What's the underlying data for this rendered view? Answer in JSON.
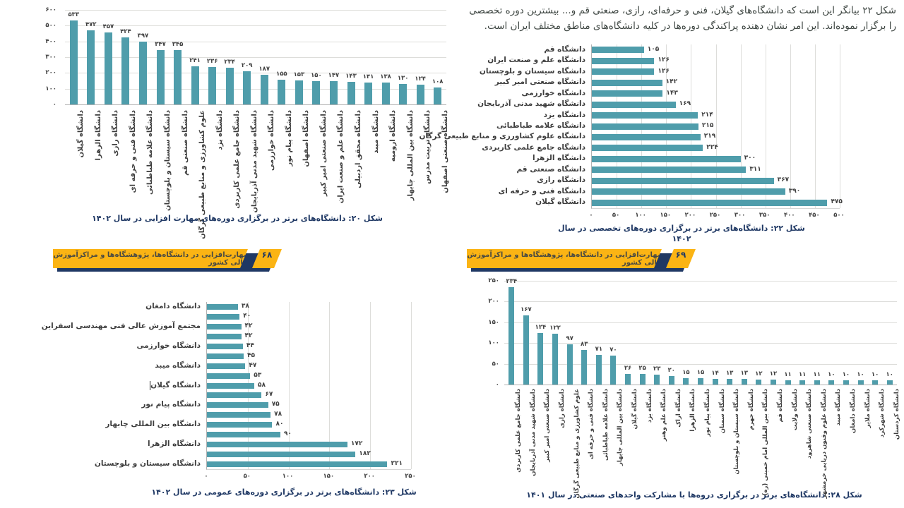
{
  "intro_paragraph": "شکل ۲۲ بیانگر این است که دانشگاه‌های گیلان، فنی و حرفه‌ای، رازی، صنعتی قم و... بیشترین دوره تخصصی را برگزار نموده‌اند. این امر نشان دهنده پراکندگی دوره‌ها در کلیه دانشگاه‌های مناطق مختلف ایران است.",
  "banners": {
    "left": {
      "title": "مهارت‌افزایی در دانشگاه‌ها، پژوهشگاه‌ها و مراکزآموزش عالی کشور",
      "page_number": "۶۸"
    },
    "right": {
      "title": "مهارت‌افزایی در دانشگاه‌ها، پژوهشگاه‌ها و مراکزآموزش عالی کشور",
      "page_number": "۶۹"
    }
  },
  "colors": {
    "bar_teal": "#4f9dab",
    "banner_yellow": "#fbb414",
    "shadow_navy": "#1f3864",
    "caption_navy": "#1f3864",
    "text_dark": "#3f3f3f"
  },
  "chart_data": [
    {
      "figure": "شکل ۲۰",
      "type": "bar",
      "orientation": "vertical",
      "grid": true,
      "legend": false,
      "xlabel": "",
      "ylabel": "",
      "caption": "شکل ۲۰: دانشگاه‌های برتر در برگزاری دوره‌های مهارت افزایی در سال ۱۴۰۲",
      "categories": [
        "دانشگاه گیلان",
        "دانشگاه الزهرا",
        "دانشگاه رازی",
        "دانشگاه فنی و حرفه ای",
        "دانشگاه علامه طباطبائی",
        "دانشگاه سیستان و بلوچستان",
        "دانشگاه صنعتی قم",
        "علوم کشاورزی و منابع طبیعی گرگان",
        "دانشگاه یزد",
        "دانشگاه جامع علمی کاربردی",
        "دانشگاه شهید مدنی آذربایجان",
        "دانشگاه خوارزمی",
        "دانشگاه پیام نور",
        "دانشگاه اصفهان",
        "دانشگاه صنعتی امیر کبیر",
        "دانشگاه علم و صنعت ایران",
        "دانشگاه محقق اردبیلی",
        "دانشگاه میبد",
        "دانشگاه ارومیه",
        "دانشگاه بین المللی چابهار",
        "دانشگاه تربیت مدرس",
        "دانشگاه صنعتی اصفهان"
      ],
      "values": [
        533,
        472,
        457,
        424,
        397,
        347,
        345,
        241,
        236,
        234,
        209,
        187,
        155,
        153,
        150,
        147,
        143,
        141,
        138,
        130,
        124,
        108
      ],
      "value_labels": [
        "۵۳۳",
        "۴۷۲",
        "۴۵۷",
        "۴۲۴",
        "۳۹۷",
        "۳۴۷",
        "۳۴۵",
        "۲۴۱",
        "۲۳۶",
        "۲۳۴",
        "۲۰۹",
        "۱۸۷",
        "۱۵۵",
        "۱۵۳",
        "۱۵۰",
        "۱۴۷",
        "۱۴۳",
        "۱۴۱",
        "۱۳۸",
        "۱۳۰",
        "۱۲۴",
        "۱۰۸"
      ],
      "ylim": [
        0,
        600
      ],
      "yticks": [
        {
          "v": 0,
          "label": "۰"
        },
        {
          "v": 100,
          "label": "۱۰۰"
        },
        {
          "v": 200,
          "label": "۲۰۰"
        },
        {
          "v": 300,
          "label": "۳۰۰"
        },
        {
          "v": 400,
          "label": "۴۰۰"
        },
        {
          "v": 500,
          "label": "۵۰۰"
        },
        {
          "v": 600,
          "label": "۶۰۰"
        }
      ]
    },
    {
      "figure": "شکل ۲۲",
      "type": "bar",
      "orientation": "horizontal",
      "grid": true,
      "legend": false,
      "xlabel": "",
      "ylabel": "",
      "caption": "شکل ۲۲:  دانشگاه‌های برتر در برگزاری دوره‌های  تخصصی در سال ۱۴۰۲",
      "caption_lines": [
        "شکل ۲۲:  دانشگاه‌های برتر در برگزاری دوره‌های  تخصصی در سال",
        "۱۴۰۲"
      ],
      "categories": [
        "دانشگاه قم",
        "دانشگاه علم و صنعت ایران",
        "دانشگاه سیستان و بلوچستان",
        "دانشگاه صنعتی امیر کبیر",
        "دانشگاه خوارزمی",
        "دانشگاه شهید مدنی آذربایجان",
        "دانشگاه یزد",
        "دانشگاه علامه طباطبائی",
        "دانشگاه علوم کشاورزی و منابع طبیعی گرگان",
        "دانشگاه جامع علمی کاربردی",
        "دانشگاه الزهرا",
        "دانشگاه صنعتی قم",
        "دانشگاه رازی",
        "دانشگاه فنی و حرفه ای",
        "دانشگاه گیلان"
      ],
      "values": [
        105,
        126,
        126,
        142,
        143,
        169,
        214,
        215,
        219,
        224,
        300,
        311,
        367,
        390,
        475
      ],
      "value_labels": [
        "۱۰۵",
        "۱۲۶",
        "۱۲۶",
        "۱۴۲",
        "۱۴۳",
        "۱۶۹",
        "۲۱۴",
        "۲۱۵",
        "۲۱۹",
        "۲۲۴",
        "۳۰۰",
        "۳۱۱",
        "۳۶۷",
        "۳۹۰",
        "۴۷۵"
      ],
      "xlim": [
        0,
        500
      ],
      "xticks": [
        {
          "v": 0,
          "label": "۰"
        },
        {
          "v": 50,
          "label": "۵۰"
        },
        {
          "v": 100,
          "label": "۱۰۰"
        },
        {
          "v": 150,
          "label": "۱۵۰"
        },
        {
          "v": 200,
          "label": "۲۰۰"
        },
        {
          "v": 250,
          "label": "۲۵۰"
        },
        {
          "v": 300,
          "label": "۳۰۰"
        },
        {
          "v": 350,
          "label": "۳۵۰"
        },
        {
          "v": 400,
          "label": "۴۰۰"
        },
        {
          "v": 450,
          "label": "۴۵۰"
        },
        {
          "v": 500,
          "label": "۵۰۰"
        }
      ]
    },
    {
      "figure": "شکل ۲۳",
      "type": "bar",
      "orientation": "horizontal",
      "grid": true,
      "legend": false,
      "xlabel": "",
      "ylabel": "",
      "caption": "شکل ۲۳: دانشگاه‌های برتر در برگزاری دوره‌های عمومی در سال ۱۴۰۲",
      "categories": [
        "دانشگاه دامغان",
        "",
        "مجتمع آموزش عالی فنی مهندسی اسفراین",
        "",
        "دانشگاه خوارزمی",
        "",
        "دانشگاه میبد",
        "",
        "دانشگاه گیلان",
        "",
        "دانشگاه پیام نور",
        "",
        "دانشگاه بین المللی چابهار",
        "",
        "دانشگاه الزهرا",
        "",
        "دانشگاه سیستان و بلوچستان"
      ],
      "values": [
        38,
        40,
        42,
        42,
        44,
        45,
        47,
        53,
        58,
        67,
        75,
        78,
        80,
        90,
        172,
        182,
        221
      ],
      "value_labels": [
        "۳۸",
        "۴۰",
        "۴۲",
        "۴۲",
        "۴۴",
        "۴۵",
        "۴۷",
        "۵۳",
        "۵۸",
        "۶۷",
        "۷۵",
        "۷۸",
        "۸۰",
        "۹۰",
        "۱۷۲",
        "۱۸۲",
        "۲۲۱"
      ],
      "xlim": [
        0,
        250
      ],
      "xticks": [
        {
          "v": 0,
          "label": "۰"
        },
        {
          "v": 50,
          "label": "۵۰"
        },
        {
          "v": 100,
          "label": "۱۰۰"
        },
        {
          "v": 150,
          "label": "۱۵۰"
        },
        {
          "v": 200,
          "label": "۲۰۰"
        },
        {
          "v": 250,
          "label": "۲۵۰"
        }
      ]
    },
    {
      "figure": "شکل ۲۸",
      "type": "bar",
      "orientation": "vertical",
      "grid": true,
      "legend": false,
      "xlabel": "",
      "ylabel": "",
      "caption": "شکل ۲۸: دانشگاه‌های برتر در برگزاری دروه‌ها با مشارکت واحدهای صنعتی در سال ۱۴۰۱",
      "categories": [
        "دانشگاه جامع علمی کاربردی",
        "دانشگاه شهید مدنی آذربایجان",
        "دانشگاه صنعتی امیر کبیر",
        "دانشگاه رازی",
        "علوم کشاورزی و منابع طبیعی گرگان",
        "دانشگاه فنی و حرفه ای",
        "دانشگاه علامه طباطبائی",
        "دانشگاه بین المللی چابهار",
        "دانشگاه گیلان",
        "دانشگاه یزد",
        "دانشگاه علم وهنر",
        "دانشگاه اراک",
        "دانشگاه الزهرا",
        "دانشگاه پیام نور",
        "دانشگاه سمنان",
        "دانشگاه سیستان و بلوچستان",
        "دانشگاه جهرم",
        "دانشگاه بین المللی امام خمینی (ره)",
        "دانشگاه قم",
        "دانشگاه ولایت",
        "دانشگاه صنعتی شاهرود",
        "دانشگاه علوم وفنون دریایی خرمشهر",
        "دانشگاه میبد",
        "دانشگاه دامغان",
        "دانشگاه ملایر",
        "دانشگاه شهرکرد",
        "دانشگاه کردستان"
      ],
      "values": [
        234,
        167,
        124,
        122,
        97,
        83,
        71,
        70,
        26,
        25,
        23,
        20,
        15,
        15,
        14,
        13,
        13,
        12,
        12,
        11,
        11,
        11,
        10,
        10,
        10,
        10,
        10
      ],
      "value_labels": [
        "۲۳۴",
        "۱۶۷",
        "۱۲۴",
        "۱۲۲",
        "۹۷",
        "۸۳",
        "۷۱",
        "۷۰",
        "۲۶",
        "۲۵",
        "۲۳",
        "۲۰",
        "۱۵",
        "۱۵",
        "۱۴",
        "۱۳",
        "۱۳",
        "۱۲",
        "۱۲",
        "۱۱",
        "۱۱",
        "۱۱",
        "۱۰",
        "۱۰",
        "۱۰",
        "۱۰",
        "۱۰"
      ],
      "ylim": [
        0,
        250
      ],
      "yticks": [
        {
          "v": 0,
          "label": "۰"
        },
        {
          "v": 50,
          "label": "۵۰"
        },
        {
          "v": 100,
          "label": "۱۰۰"
        },
        {
          "v": 150,
          "label": "۱۵۰"
        },
        {
          "v": 200,
          "label": "۲۰۰"
        },
        {
          "v": 250,
          "label": "۲۵۰"
        }
      ]
    }
  ]
}
